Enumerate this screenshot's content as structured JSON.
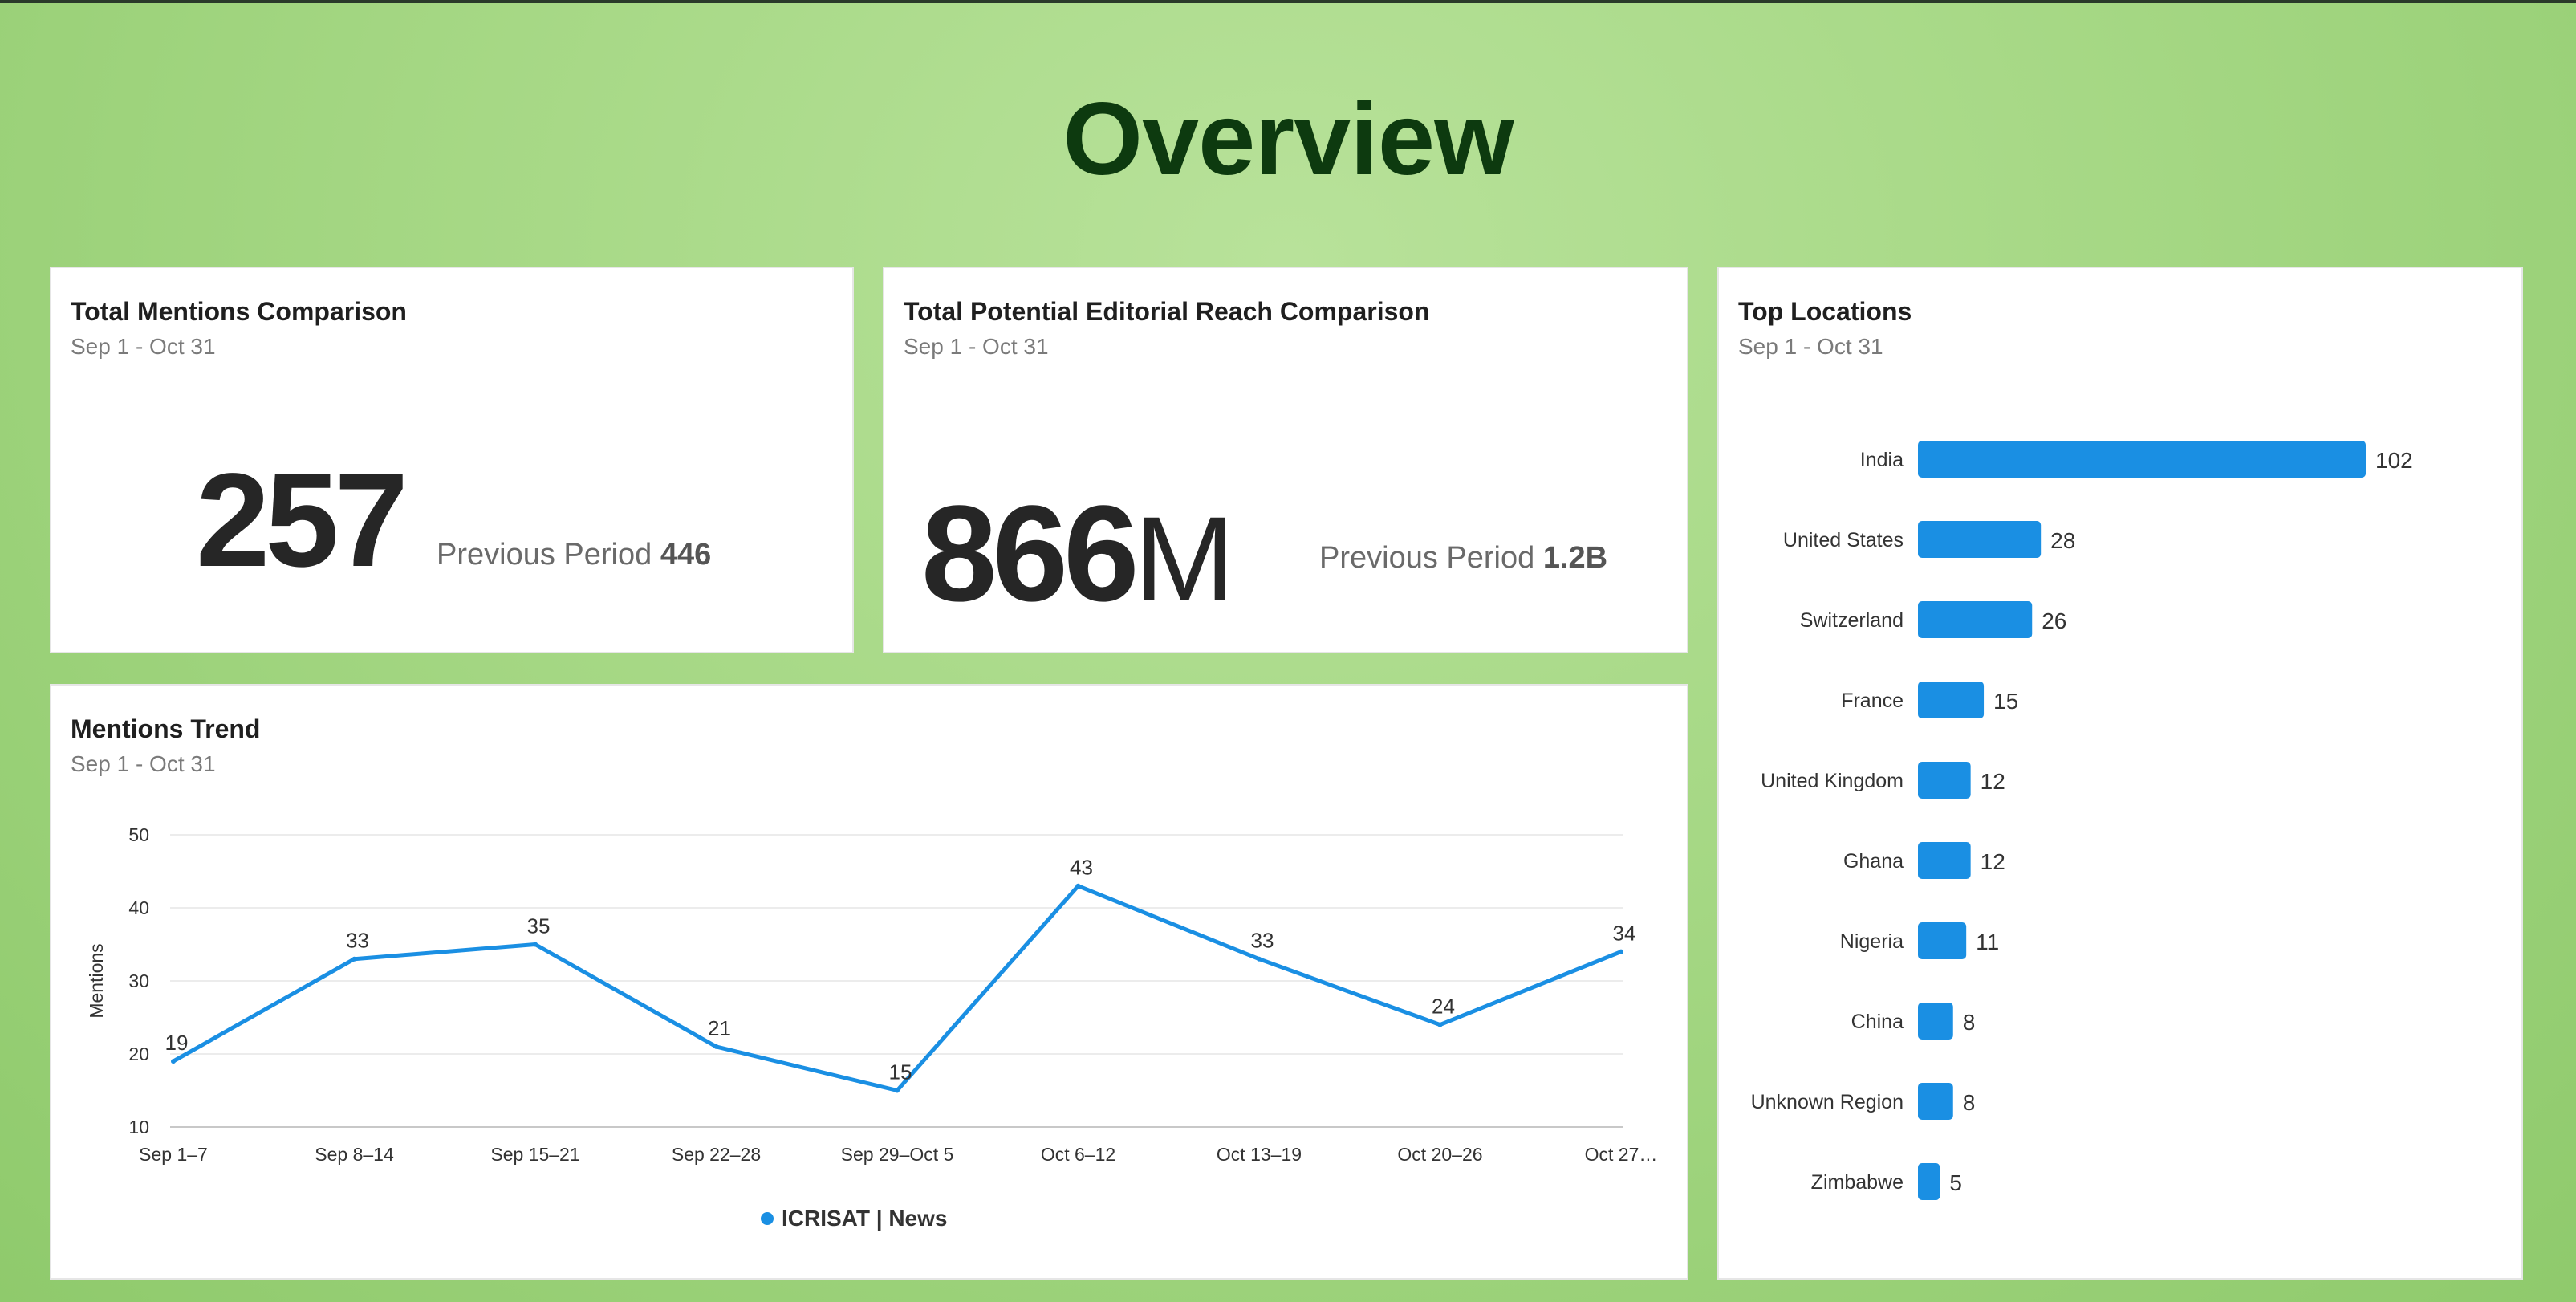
{
  "page_title": "Overview",
  "mentions_card": {
    "title": "Total Mentions Comparison",
    "subtitle": "Sep 1 - Oct 31",
    "value": "257",
    "prev_label": "Previous Period",
    "prev_value": "446"
  },
  "reach_card": {
    "title": "Total Potential Editorial Reach Comparison",
    "subtitle": "Sep 1 - Oct 31",
    "value": "866",
    "unit": "M",
    "prev_label": "Previous Period",
    "prev_value": "1.2B"
  },
  "trend_card": {
    "title": "Mentions Trend",
    "subtitle": "Sep 1 - Oct 31"
  },
  "locations_card": {
    "title": "Top Locations",
    "subtitle": "Sep 1 - Oct 31"
  },
  "colors": {
    "accent": "#1a8fe3",
    "title": "#0d3a0f"
  },
  "chart_data": [
    {
      "type": "line",
      "categories": [
        "Sep 1–7",
        "Sep 8–14",
        "Sep 15–21",
        "Sep 22–28",
        "Sep 29–Oct 5",
        "Oct 6–12",
        "Oct 13–19",
        "Oct 20–26",
        "Oct 27…"
      ],
      "series": [
        {
          "name": "ICRISAT | News",
          "values": [
            19,
            33,
            35,
            21,
            15,
            43,
            33,
            24,
            34
          ]
        }
      ],
      "ylabel": "Mentions",
      "ylim": [
        10,
        50
      ],
      "yticks": [
        10,
        20,
        30,
        40,
        50
      ],
      "grid": true,
      "legend": "bottom-center",
      "data_labels": true
    },
    {
      "type": "bar",
      "orientation": "horizontal",
      "categories": [
        "India",
        "United States",
        "Switzerland",
        "France",
        "United Kingdom",
        "Ghana",
        "Nigeria",
        "China",
        "Unknown Region",
        "Zimbabwe"
      ],
      "values": [
        102,
        28,
        26,
        15,
        12,
        12,
        11,
        8,
        8,
        5
      ],
      "data_labels": true
    }
  ]
}
